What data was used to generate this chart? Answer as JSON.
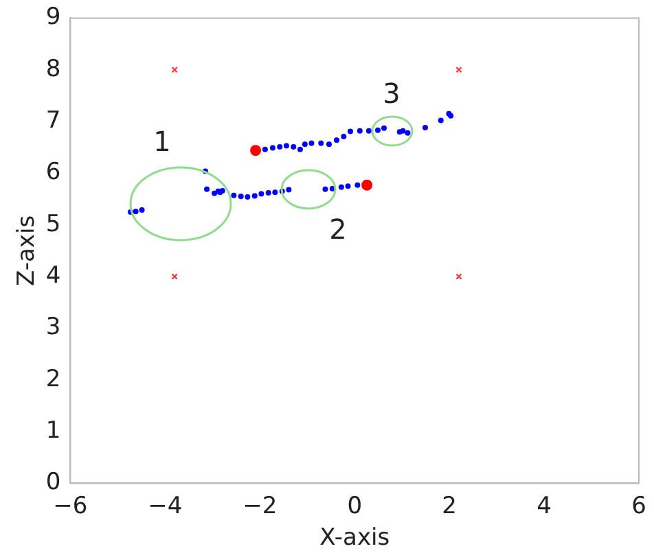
{
  "chart_data": {
    "type": "scatter",
    "xlabel": "X-axis",
    "ylabel": "Z-axis",
    "xlim": [
      -6,
      6
    ],
    "ylim": [
      0,
      9
    ],
    "xticks": [
      -6,
      -4,
      -2,
      0,
      2,
      4,
      6
    ],
    "yticks": [
      0,
      1,
      2,
      3,
      4,
      5,
      6,
      7,
      8,
      9
    ],
    "grid": false,
    "legend": false,
    "series": [
      {
        "color": "#0000ff",
        "marker": "circle",
        "x": [
          -4.73,
          -4.62,
          -4.49,
          -3.15,
          -3.12,
          -2.96,
          -2.88,
          -2.84,
          -2.79,
          -2.55,
          -2.4,
          -2.26,
          -2.11,
          -1.97,
          -1.82,
          -1.68,
          -1.53,
          -1.39,
          -0.62,
          -0.47,
          -0.28,
          -0.14,
          0.06
        ],
        "values": [
          5.25,
          5.26,
          5.29,
          6.04,
          5.69,
          5.61,
          5.65,
          5.63,
          5.66,
          5.57,
          5.55,
          5.54,
          5.56,
          5.6,
          5.62,
          5.63,
          5.65,
          5.68,
          5.69,
          5.7,
          5.73,
          5.75,
          5.77
        ]
      },
      {
        "color": "#0000ff",
        "marker": "circle",
        "x": [
          -1.89,
          -1.73,
          -1.58,
          -1.44,
          -1.29,
          -1.15,
          -1.05,
          -0.91,
          -0.71,
          -0.54,
          -0.38,
          -0.23,
          -0.09,
          0.11,
          0.3,
          0.49,
          0.62,
          0.95,
          1.02,
          1.12,
          1.49,
          1.82,
          1.99,
          2.03
        ],
        "values": [
          6.46,
          6.49,
          6.51,
          6.53,
          6.51,
          6.46,
          6.56,
          6.58,
          6.58,
          6.56,
          6.64,
          6.71,
          6.81,
          6.82,
          6.82,
          6.83,
          6.87,
          6.8,
          6.82,
          6.78,
          6.88,
          7.02,
          7.15,
          7.11
        ]
      },
      {
        "color": "#ff0000",
        "marker": "circle",
        "x": [
          -2.09,
          0.26
        ],
        "values": [
          6.44,
          5.77
        ]
      },
      {
        "color": "#ff4040",
        "marker": "cross",
        "x": [
          -3.8,
          2.2,
          -3.8,
          2.2
        ],
        "values": [
          8,
          8,
          4,
          4
        ]
      }
    ],
    "annotations": [
      "1",
      "2",
      "3"
    ]
  }
}
